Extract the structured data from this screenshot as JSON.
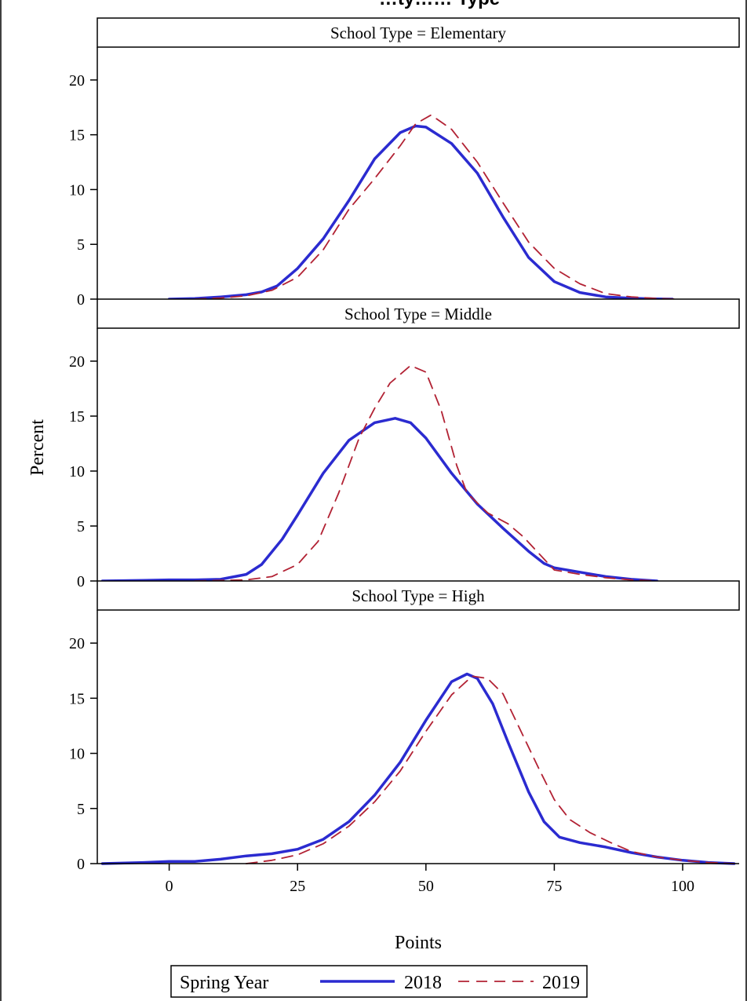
{
  "chart_data": {
    "type": "line",
    "title": "…ty…… Type",
    "xlabel": "Points",
    "ylabel": "Percent",
    "xlim": [
      -14,
      111
    ],
    "ylim": [
      0,
      23
    ],
    "x_ticks": [
      0,
      25,
      50,
      75,
      100
    ],
    "y_ticks": [
      0,
      5,
      10,
      15,
      20
    ],
    "legend": {
      "title": "Spring Year",
      "placement": "bottom-center",
      "entries": [
        "2018",
        "2019"
      ]
    },
    "series_styles": {
      "2018": {
        "color": "#2b2bd0",
        "dash": "solid"
      },
      "2019": {
        "color": "#b22234",
        "dash": "dashed"
      }
    },
    "panels": [
      {
        "label": "School Type = Elementary",
        "series": [
          {
            "name": "2018",
            "points": [
              [
                0,
                0
              ],
              [
                5,
                0.05
              ],
              [
                10,
                0.2
              ],
              [
                15,
                0.4
              ],
              [
                18,
                0.65
              ],
              [
                21,
                1.2
              ],
              [
                25,
                2.8
              ],
              [
                30,
                5.5
              ],
              [
                35,
                9
              ],
              [
                40,
                12.8
              ],
              [
                45,
                15.2
              ],
              [
                48,
                15.8
              ],
              [
                50,
                15.7
              ],
              [
                55,
                14.2
              ],
              [
                60,
                11.5
              ],
              [
                65,
                7.5
              ],
              [
                70,
                3.8
              ],
              [
                75,
                1.6
              ],
              [
                80,
                0.6
              ],
              [
                85,
                0.2
              ],
              [
                90,
                0.08
              ],
              [
                95,
                0.02
              ],
              [
                98,
                0
              ]
            ]
          },
          {
            "name": "2019",
            "points": [
              [
                5,
                0
              ],
              [
                10,
                0.1
              ],
              [
                15,
                0.3
              ],
              [
                20,
                0.8
              ],
              [
                25,
                2
              ],
              [
                30,
                4.5
              ],
              [
                35,
                8.2
              ],
              [
                40,
                11
              ],
              [
                45,
                14
              ],
              [
                48,
                16
              ],
              [
                51,
                16.8
              ],
              [
                55,
                15.5
              ],
              [
                60,
                12.5
              ],
              [
                65,
                8.8
              ],
              [
                70,
                5.2
              ],
              [
                75,
                2.8
              ],
              [
                80,
                1.4
              ],
              [
                85,
                0.5
              ],
              [
                90,
                0.2
              ],
              [
                95,
                0.06
              ],
              [
                99,
                0
              ]
            ]
          }
        ]
      },
      {
        "label": "School Type = Middle",
        "series": [
          {
            "name": "2018",
            "points": [
              [
                -13,
                0
              ],
              [
                -5,
                0.05
              ],
              [
                0,
                0.1
              ],
              [
                5,
                0.1
              ],
              [
                10,
                0.15
              ],
              [
                15,
                0.6
              ],
              [
                18,
                1.5
              ],
              [
                22,
                3.8
              ],
              [
                25,
                6
              ],
              [
                30,
                9.8
              ],
              [
                35,
                12.8
              ],
              [
                40,
                14.4
              ],
              [
                44,
                14.8
              ],
              [
                47,
                14.4
              ],
              [
                50,
                13
              ],
              [
                55,
                9.8
              ],
              [
                60,
                7
              ],
              [
                65,
                4.8
              ],
              [
                70,
                2.7
              ],
              [
                73,
                1.6
              ],
              [
                75,
                1.2
              ],
              [
                80,
                0.8
              ],
              [
                85,
                0.4
              ],
              [
                90,
                0.15
              ],
              [
                95,
                0
              ]
            ]
          },
          {
            "name": "2019",
            "points": [
              [
                5,
                0
              ],
              [
                10,
                0.05
              ],
              [
                15,
                0.1
              ],
              [
                20,
                0.4
              ],
              [
                25,
                1.5
              ],
              [
                29,
                3.6
              ],
              [
                33,
                8
              ],
              [
                37,
                13
              ],
              [
                40,
                15.7
              ],
              [
                43,
                18
              ],
              [
                47,
                19.6
              ],
              [
                50,
                19
              ],
              [
                53,
                15.5
              ],
              [
                56,
                10.5
              ],
              [
                58,
                8
              ],
              [
                62,
                6.2
              ],
              [
                66,
                5.2
              ],
              [
                69,
                4
              ],
              [
                73,
                2
              ],
              [
                75,
                1
              ],
              [
                80,
                0.6
              ],
              [
                85,
                0.3
              ],
              [
                90,
                0.1
              ],
              [
                95,
                0
              ]
            ]
          }
        ]
      },
      {
        "label": "School Type = High",
        "series": [
          {
            "name": "2018",
            "points": [
              [
                -13,
                0
              ],
              [
                -5,
                0.1
              ],
              [
                0,
                0.2
              ],
              [
                5,
                0.2
              ],
              [
                10,
                0.4
              ],
              [
                15,
                0.7
              ],
              [
                20,
                0.9
              ],
              [
                25,
                1.3
              ],
              [
                30,
                2.2
              ],
              [
                35,
                3.8
              ],
              [
                40,
                6.2
              ],
              [
                45,
                9.2
              ],
              [
                50,
                13
              ],
              [
                55,
                16.5
              ],
              [
                58,
                17.2
              ],
              [
                60,
                16.8
              ],
              [
                63,
                14.5
              ],
              [
                66,
                11
              ],
              [
                70,
                6.5
              ],
              [
                73,
                3.8
              ],
              [
                76,
                2.4
              ],
              [
                80,
                1.9
              ],
              [
                85,
                1.5
              ],
              [
                90,
                1
              ],
              [
                95,
                0.6
              ],
              [
                100,
                0.3
              ],
              [
                105,
                0.1
              ],
              [
                110,
                0
              ]
            ]
          },
          {
            "name": "2019",
            "points": [
              [
                15,
                0
              ],
              [
                20,
                0.3
              ],
              [
                25,
                0.8
              ],
              [
                30,
                1.8
              ],
              [
                35,
                3.4
              ],
              [
                40,
                5.6
              ],
              [
                45,
                8.4
              ],
              [
                50,
                12
              ],
              [
                55,
                15.3
              ],
              [
                59,
                17
              ],
              [
                62,
                16.8
              ],
              [
                65,
                15.4
              ],
              [
                68,
                12.5
              ],
              [
                72,
                8.6
              ],
              [
                75,
                5.8
              ],
              [
                78,
                4
              ],
              [
                82,
                2.8
              ],
              [
                86,
                1.9
              ],
              [
                90,
                1.1
              ],
              [
                95,
                0.6
              ],
              [
                100,
                0.3
              ],
              [
                105,
                0.1
              ],
              [
                110,
                0
              ]
            ]
          }
        ]
      }
    ]
  }
}
